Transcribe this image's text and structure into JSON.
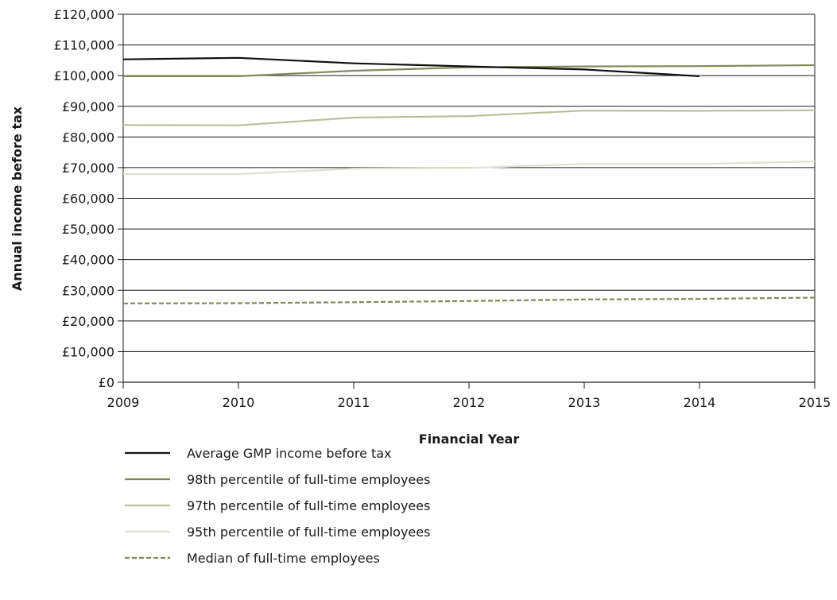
{
  "chart_data": {
    "type": "line",
    "title": "",
    "xlabel": "Financial Year",
    "ylabel": "Annual income before tax",
    "x": [
      2009,
      2010,
      2011,
      2012,
      2013,
      2014,
      2015
    ],
    "x_ticks": [
      "2009",
      "2010",
      "2011",
      "2012",
      "2013",
      "2014",
      "2015"
    ],
    "xlim": [
      2009,
      2015
    ],
    "ylim": [
      0,
      120000
    ],
    "y_ticks": [
      0,
      10000,
      20000,
      30000,
      40000,
      50000,
      60000,
      70000,
      80000,
      90000,
      100000,
      110000,
      120000
    ],
    "y_tick_labels": [
      "£0",
      "£10,000",
      "£20,000",
      "£30,000",
      "£40,000",
      "£50,000",
      "£60,000",
      "£70,000",
      "£80,000",
      "£90,000",
      "£100,000",
      "£110,000",
      "£120,000"
    ],
    "grid": "horizontal",
    "legend_position": "bottom",
    "series": [
      {
        "name": "Average GMP income before tax",
        "color": "#111111",
        "dash": "solid",
        "values": [
          105300,
          105800,
          104000,
          103000,
          102000,
          99800,
          null
        ]
      },
      {
        "name": "98th percentile of full-time employees",
        "color": "#7f8c5a",
        "dash": "solid",
        "values": [
          99800,
          99800,
          101600,
          102700,
          103000,
          103100,
          103400
        ]
      },
      {
        "name": "97th percentile of full-time employees",
        "color": "#b9c09c",
        "dash": "solid",
        "values": [
          83900,
          83800,
          86300,
          86800,
          88600,
          88500,
          88700
        ]
      },
      {
        "name": "95th percentile of full-time employees",
        "color": "#dfe2cf",
        "dash": "solid",
        "values": [
          67900,
          67900,
          69700,
          69900,
          71200,
          71200,
          72000
        ]
      },
      {
        "name": "Median of full-time employees",
        "color": "#7f8c5a",
        "dash": "dashed",
        "values": [
          25700,
          25800,
          26100,
          26500,
          27000,
          27200,
          27600
        ]
      }
    ]
  }
}
